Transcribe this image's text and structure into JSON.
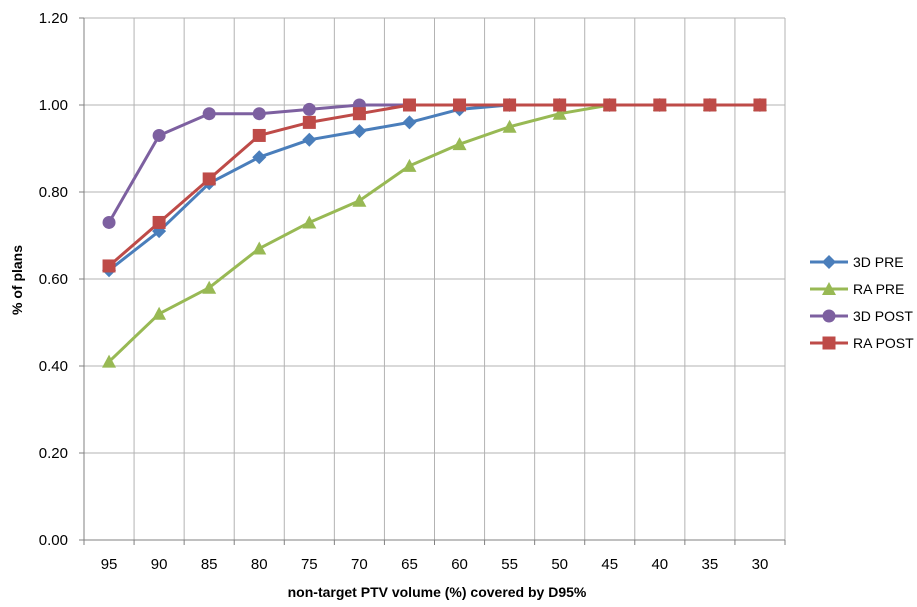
{
  "chart_data": {
    "type": "line",
    "title": "",
    "xlabel": "non-target PTV volume (%) covered by D95%",
    "ylabel": "% of plans",
    "categories": [
      "95",
      "90",
      "85",
      "80",
      "75",
      "70",
      "65",
      "60",
      "55",
      "50",
      "45",
      "40",
      "35",
      "30"
    ],
    "ylim": [
      0,
      1.2
    ],
    "yticks": [
      "0.00",
      "0.20",
      "0.40",
      "0.60",
      "0.80",
      "1.00",
      "1.20"
    ],
    "grid": true,
    "legend_position": "right",
    "series": [
      {
        "name": "3D PRE",
        "color": "#4a7ebb",
        "marker": "diamond",
        "values": [
          0.62,
          0.71,
          0.82,
          0.88,
          0.92,
          0.94,
          0.96,
          0.99,
          1.0,
          1.0,
          1.0,
          1.0,
          1.0,
          1.0
        ]
      },
      {
        "name": "RA PRE",
        "color": "#98b954",
        "marker": "triangle",
        "values": [
          0.41,
          0.52,
          0.58,
          0.67,
          0.73,
          0.78,
          0.86,
          0.91,
          0.95,
          0.98,
          1.0,
          1.0,
          1.0,
          1.0
        ]
      },
      {
        "name": "3D POST",
        "color": "#7d60a0",
        "marker": "circle",
        "values": [
          0.73,
          0.93,
          0.98,
          0.98,
          0.99,
          1.0,
          1.0,
          1.0,
          1.0,
          1.0,
          1.0,
          1.0,
          1.0,
          1.0
        ]
      },
      {
        "name": "RA POST",
        "color": "#be4b48",
        "marker": "square",
        "values": [
          0.63,
          0.73,
          0.83,
          0.93,
          0.96,
          0.98,
          1.0,
          1.0,
          1.0,
          1.0,
          1.0,
          1.0,
          1.0,
          1.0
        ]
      }
    ]
  }
}
